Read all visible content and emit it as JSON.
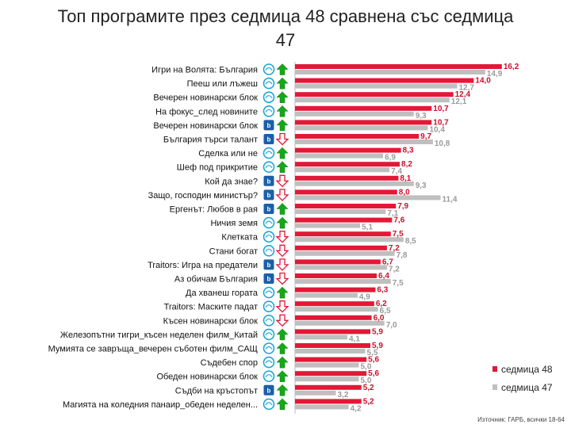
{
  "chart_data": {
    "type": "bar",
    "orientation": "horizontal",
    "title": "Топ програмите през седмица 48 сравнена със седмица 47",
    "source": "Източник: ГАРБ, всички 18-64",
    "xlim": [
      0,
      17
    ],
    "grid": false,
    "legend_position": "bottom-right",
    "series_colors": [
      "#e31837",
      "#bfbfbf"
    ],
    "categories": [
      "Игри на Волята: България",
      "Пееш или лъжеш",
      "Вечерен новинарски блок",
      "На фокус_след новините",
      "Вечерен новинарски блок",
      "България търси талант",
      "Сделка или не",
      "Шеф под прикритие",
      "Кой да знае?",
      "Защо, господин министър?",
      "Ергенът: Любов в рая",
      "Ничия земя",
      "Клетката",
      "Стани богат",
      "Traitors: Игра на предатели",
      "Аз обичам България",
      "Да хванеш гората",
      "Traitors: Маските падат",
      "Късен новинарски блок",
      "Железопътни тигри_късен неделен филм_Китай",
      "Мумията се завръща_вечерен съботен филм_САЩ",
      "Съдебен спор",
      "Обеден новинарски блок",
      "Съдби на кръстопът",
      "Магията на коледния панаир_обеден неделен..."
    ],
    "channels": [
      "nova",
      "nova",
      "nova",
      "nova",
      "btv",
      "btv",
      "nova",
      "nova",
      "btv",
      "btv",
      "btv",
      "nova",
      "nova",
      "nova",
      "btv",
      "btv",
      "nova",
      "nova",
      "nova",
      "nova",
      "nova",
      "nova",
      "nova",
      "btv",
      "nova"
    ],
    "trend": [
      "up",
      "up",
      "up",
      "up",
      "up",
      "down",
      "up",
      "up",
      "down",
      "down",
      "up",
      "up",
      "down",
      "down",
      "down",
      "down",
      "up",
      "down",
      "down",
      "up",
      "up",
      "up",
      "up",
      "up",
      "up"
    ],
    "series": [
      {
        "name": "седмица 48",
        "values": [
          16.2,
          14.0,
          12.4,
          10.7,
          10.7,
          9.7,
          8.3,
          8.2,
          8.1,
          8.0,
          7.9,
          7.6,
          7.5,
          7.2,
          6.7,
          6.4,
          6.3,
          6.2,
          6.0,
          5.9,
          5.9,
          5.6,
          5.6,
          5.2,
          5.2
        ]
      },
      {
        "name": "седмица 47",
        "values": [
          14.9,
          12.7,
          12.1,
          9.3,
          10.4,
          10.8,
          6.9,
          7.4,
          9.3,
          11.4,
          7.1,
          5.1,
          8.5,
          7.8,
          7.2,
          7.5,
          4.9,
          6.5,
          7.0,
          4.1,
          5.5,
          5.0,
          5.0,
          3.2,
          4.2
        ]
      }
    ]
  }
}
